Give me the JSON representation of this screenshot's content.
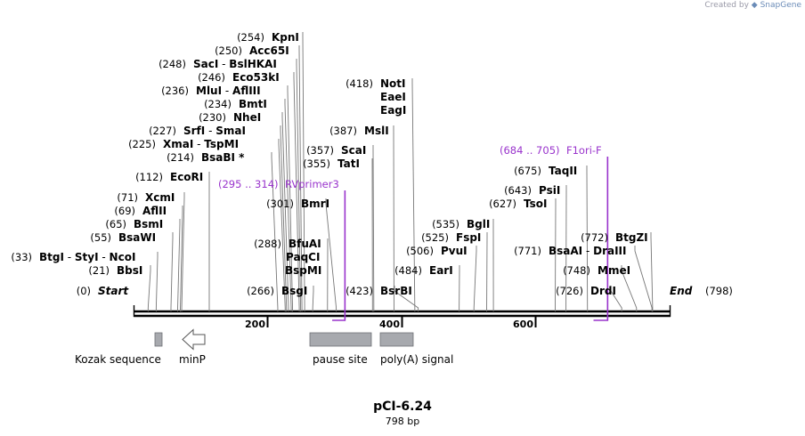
{
  "credit": {
    "prefix": "Created by",
    "brand": "SnapGene"
  },
  "title": "pCI-6.24",
  "length_label": "798 bp",
  "total_bp": 798,
  "ends": {
    "start": {
      "pos": "(0)",
      "name": "Start"
    },
    "end": {
      "pos": "(798)",
      "name": "End"
    }
  },
  "ticks": [
    "200",
    "400",
    "600"
  ],
  "tick_values": [
    200,
    400,
    600
  ],
  "enzymes": [
    {
      "pos": "(254)",
      "names": [
        "KpnI"
      ],
      "site": 254
    },
    {
      "pos": "(250)",
      "names": [
        "Acc65I"
      ],
      "site": 250
    },
    {
      "pos": "(248)",
      "names": [
        "SacI",
        "BslHKAI"
      ],
      "site": 248
    },
    {
      "pos": "(246)",
      "names": [
        "Eco53kI"
      ],
      "site": 246
    },
    {
      "pos": "(236)",
      "names": [
        "MluI",
        "AflIII"
      ],
      "site": 236
    },
    {
      "pos": "(234)",
      "names": [
        "BmtI"
      ],
      "site": 234
    },
    {
      "pos": "(230)",
      "names": [
        "NheI"
      ],
      "site": 230
    },
    {
      "pos": "(227)",
      "names": [
        "SrfI",
        "SmaI"
      ],
      "site": 227
    },
    {
      "pos": "(225)",
      "names": [
        "XmaI",
        "TspMI"
      ],
      "site": 225
    },
    {
      "pos": "(214)",
      "names": [
        "BsaBI *"
      ],
      "site": 214
    },
    {
      "pos": "(112)",
      "names": [
        "EcoRI"
      ],
      "site": 112
    },
    {
      "pos": "(71)",
      "names": [
        "XcmI"
      ],
      "site": 71
    },
    {
      "pos": "(69)",
      "names": [
        "AflII"
      ],
      "site": 69
    },
    {
      "pos": "(65)",
      "names": [
        "BsmI"
      ],
      "site": 65
    },
    {
      "pos": "(55)",
      "names": [
        "BsaWI"
      ],
      "site": 55
    },
    {
      "pos": "(33)",
      "names": [
        "BtgI",
        "StyI",
        "NcoI"
      ],
      "site": 33
    },
    {
      "pos": "(21)",
      "names": [
        "BbsI"
      ],
      "site": 21
    },
    {
      "pos": "(418)",
      "names": [
        "NotI"
      ],
      "site": 418
    },
    {
      "pos": "",
      "names": [
        "EaeI"
      ],
      "site": 418
    },
    {
      "pos": "",
      "names": [
        "EagI"
      ],
      "site": 418
    },
    {
      "pos": "(387)",
      "names": [
        "MslI"
      ],
      "site": 387
    },
    {
      "pos": "(357)",
      "names": [
        "ScaI"
      ],
      "site": 357
    },
    {
      "pos": "(355)",
      "names": [
        "TatI"
      ],
      "site": 355
    },
    {
      "pos": "(301)",
      "names": [
        "BmrI"
      ],
      "site": 301
    },
    {
      "pos": "(288)",
      "names": [
        "BfuAI"
      ],
      "site": 288
    },
    {
      "pos": "",
      "names": [
        "PaqCI"
      ],
      "site": 288
    },
    {
      "pos": "",
      "names": [
        "BspMI"
      ],
      "site": 288
    },
    {
      "pos": "(266)",
      "names": [
        "BsgI"
      ],
      "site": 266
    },
    {
      "pos": "(423)",
      "names": [
        "BsrBI"
      ],
      "site": 423
    },
    {
      "pos": "(535)",
      "names": [
        "BglI"
      ],
      "site": 535
    },
    {
      "pos": "(525)",
      "names": [
        "FspI"
      ],
      "site": 525
    },
    {
      "pos": "(506)",
      "names": [
        "PvuI"
      ],
      "site": 506
    },
    {
      "pos": "(484)",
      "names": [
        "EarI"
      ],
      "site": 484
    },
    {
      "pos": "(675)",
      "names": [
        "TaqII"
      ],
      "site": 675
    },
    {
      "pos": "(643)",
      "names": [
        "PsiI"
      ],
      "site": 643
    },
    {
      "pos": "(627)",
      "names": [
        "TsoI"
      ],
      "site": 627
    },
    {
      "pos": "(771)",
      "names": [
        "BsaAI",
        "DraIII"
      ],
      "site": 771
    },
    {
      "pos": "(772)",
      "names": [
        "BtgZI"
      ],
      "site": 772
    },
    {
      "pos": "(748)",
      "names": [
        "MmeI"
      ],
      "site": 748
    },
    {
      "pos": "(726)",
      "names": [
        "DrdI"
      ],
      "site": 726
    }
  ],
  "primers": [
    {
      "range": "(295 .. 314)",
      "name": "RVprimer3",
      "start": 295,
      "end": 314
    },
    {
      "range": "(684 .. 705)",
      "name": "F1ori-F",
      "start": 684,
      "end": 705
    }
  ],
  "features": [
    {
      "name": "Kozak sequence",
      "start": 33,
      "end": 43,
      "shape": "box"
    },
    {
      "name": "minP",
      "start": 72,
      "end": 104,
      "shape": "arrow-left"
    },
    {
      "name": "pause site",
      "start": 262,
      "end": 354,
      "shape": "box"
    },
    {
      "name": "poly(A) signal",
      "start": 368,
      "end": 417,
      "shape": "box"
    }
  ],
  "colors": {
    "primer": "#9933cc",
    "feature_fill": "#a7a9ae",
    "backbone": "#000000",
    "leader": "#777777"
  }
}
